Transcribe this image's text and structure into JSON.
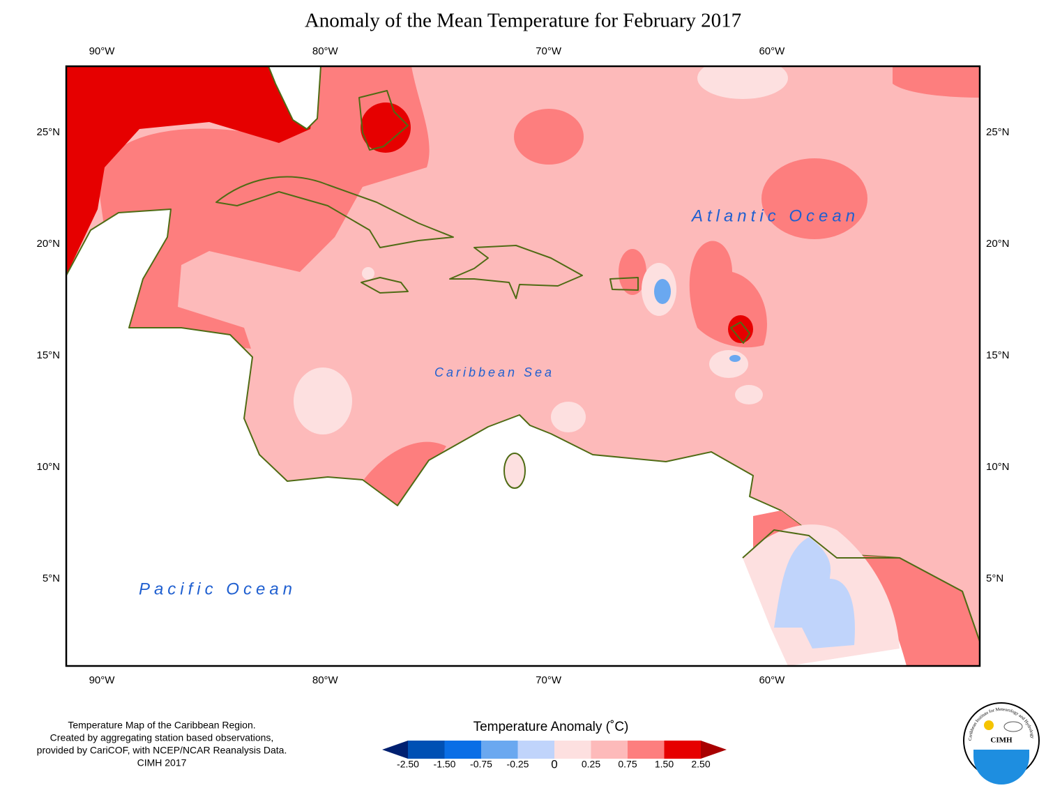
{
  "title": "Anomaly of the Mean Temperature for February 2017",
  "map": {
    "lon_labels": [
      "90°W",
      "80°W",
      "70°W",
      "60°W"
    ],
    "lat_labels": [
      "25°N",
      "20°N",
      "15°N",
      "10°N",
      "5°N"
    ],
    "regions": [
      {
        "name": "Atlantic Ocean",
        "style": "large"
      },
      {
        "name": "Caribbean Sea",
        "style": "small"
      },
      {
        "name": "Pacific Ocean",
        "style": "large"
      }
    ]
  },
  "notes": [
    "Temperature Map of the Caribbean Region.",
    "Created by aggregating station based observations,",
    "provided by CariCOF, with NCEP/NCAR Reanalysis Data.",
    "CIMH 2017"
  ],
  "legend": {
    "title": "Temperature Anomaly (˚C)",
    "ticks": [
      "-2.50",
      "-1.50",
      "-0.75",
      "-0.25",
      "0",
      "0.25",
      "0.75",
      "1.50",
      "2.50"
    ],
    "colors": [
      "#002070",
      "#0050b4",
      "#0a6ee6",
      "#6aa8f0",
      "#c0d4fb",
      "#fde0e0",
      "#fdbaba",
      "#fd7e7e",
      "#e60000",
      "#a80000"
    ]
  },
  "logo": {
    "name": "CIMH",
    "ring_text": "Caribbean Institute for Meteorology and Hydrology"
  }
}
